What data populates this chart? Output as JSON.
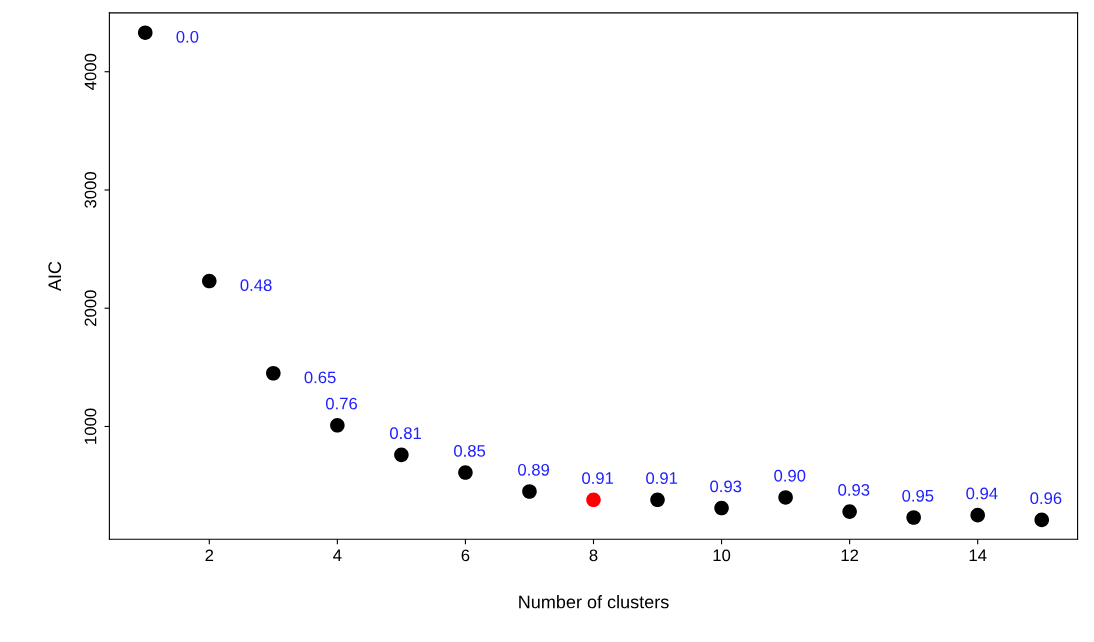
{
  "chart_data": {
    "type": "scatter",
    "xlabel": "Number of clusters",
    "ylabel": "AIC",
    "x": [
      1,
      2,
      3,
      4,
      5,
      6,
      7,
      8,
      9,
      10,
      11,
      12,
      13,
      14,
      15
    ],
    "values": [
      4330,
      2230,
      1450,
      1010,
      760,
      610,
      450,
      380,
      380,
      310,
      400,
      280,
      230,
      250,
      210
    ],
    "colors": [
      "#000000",
      "#000000",
      "#000000",
      "#000000",
      "#000000",
      "#000000",
      "#000000",
      "#ff0000",
      "#000000",
      "#000000",
      "#000000",
      "#000000",
      "#000000",
      "#000000",
      "#000000"
    ],
    "annotations": [
      {
        "text": "0.0",
        "x": 1,
        "y": 4330
      },
      {
        "text": "0.48",
        "x": 2,
        "y": 2230
      },
      {
        "text": "0.65",
        "x": 3,
        "y": 1450
      },
      {
        "text": "0.76",
        "x": 4,
        "y": 1010
      },
      {
        "text": "0.81",
        "x": 5,
        "y": 760
      },
      {
        "text": "0.85",
        "x": 6,
        "y": 610
      },
      {
        "text": "0.89",
        "x": 7,
        "y": 450
      },
      {
        "text": "0.91",
        "x": 8,
        "y": 380
      },
      {
        "text": "0.91",
        "x": 9,
        "y": 380
      },
      {
        "text": "0.93",
        "x": 10,
        "y": 310
      },
      {
        "text": "0.90",
        "x": 11,
        "y": 400
      },
      {
        "text": "0.93",
        "x": 12,
        "y": 280
      },
      {
        "text": "0.95",
        "x": 13,
        "y": 230
      },
      {
        "text": "0.94",
        "x": 14,
        "y": 250
      },
      {
        "text": "0.96",
        "x": 15,
        "y": 210
      }
    ],
    "xlim": [
      0.44,
      15.56
    ],
    "ylim": [
      46,
      4498
    ],
    "xticks": [
      2,
      4,
      6,
      8,
      10,
      12,
      14
    ],
    "yticks": [
      1000,
      2000,
      3000,
      4000
    ],
    "marker": "circle",
    "grid": false
  }
}
